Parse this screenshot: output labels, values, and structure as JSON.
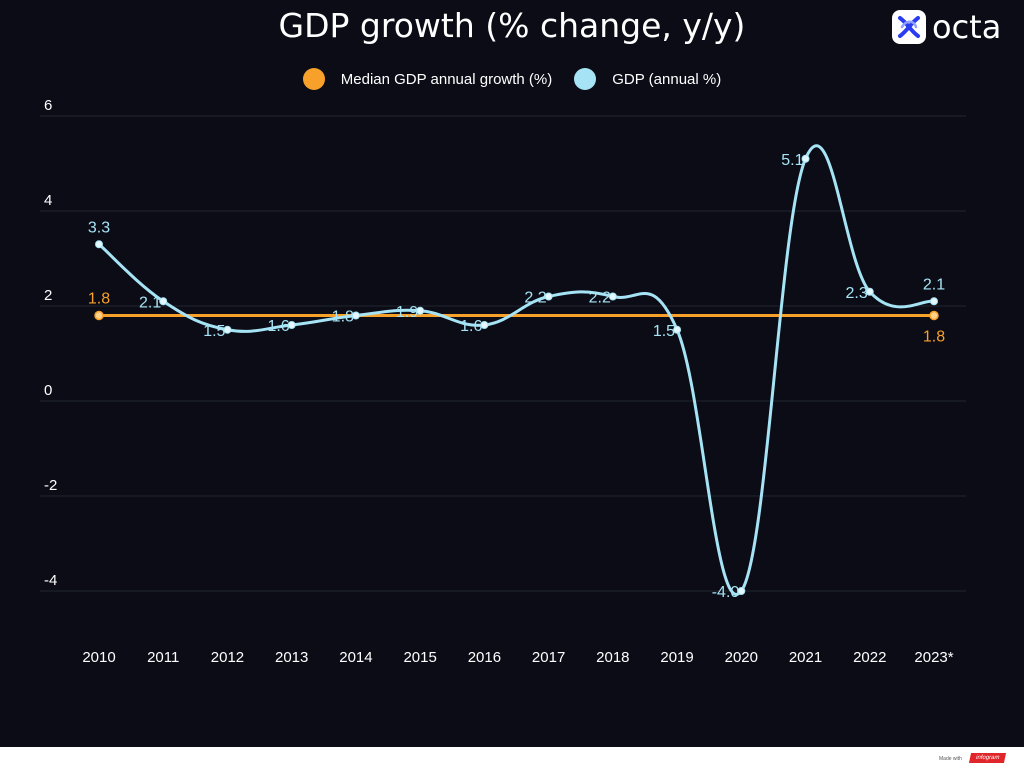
{
  "brand": {
    "name": "octa",
    "logo_icon": "octa-x-icon"
  },
  "footer": {
    "made_with": "Made with",
    "tool": "infogram"
  },
  "colors": {
    "background": "#0b0c16",
    "median": "#f7a12a",
    "gdp": "#a6e4f5",
    "grid": "#23252f",
    "text": "#ffffff"
  },
  "chart_data": {
    "type": "line",
    "title": "GDP growth (% change, y/y)",
    "xlabel": "",
    "ylabel": "",
    "ylim": [
      -5,
      6
    ],
    "yticks": [
      "6",
      "4",
      "2",
      "0",
      "-2",
      "-4"
    ],
    "ytick_values": [
      6,
      4,
      2,
      0,
      -2,
      -4
    ],
    "grid": true,
    "legend_position": "top",
    "categories": [
      "2010",
      "2011",
      "2012",
      "2013",
      "2014",
      "2015",
      "2016",
      "2017",
      "2018",
      "2019",
      "2020",
      "2021",
      "2022",
      "2023*"
    ],
    "series": [
      {
        "name": "Median GDP annual growth (%)",
        "color": "#f7a12a",
        "values": [
          1.8,
          1.8,
          1.8,
          1.8,
          1.8,
          1.8,
          1.8,
          1.8,
          1.8,
          1.8,
          1.8,
          1.8,
          1.8,
          1.8
        ],
        "labels": [
          {
            "index": 0,
            "text": "1.8"
          },
          {
            "index": 13,
            "text": "1.8"
          }
        ]
      },
      {
        "name": "GDP (annual %)",
        "color": "#a6e4f5",
        "values": [
          3.3,
          2.1,
          1.5,
          1.6,
          1.8,
          1.9,
          1.6,
          2.2,
          2.2,
          1.5,
          -4.0,
          5.1,
          2.3,
          2.1
        ],
        "labels": [
          "3.3",
          "2.1",
          "1.5",
          "1.6",
          "1.8",
          "1.9",
          "1.6",
          "2.2",
          "2.2",
          "1.5",
          "-4.0",
          "5.1",
          "2.3",
          "2.1"
        ]
      }
    ]
  }
}
